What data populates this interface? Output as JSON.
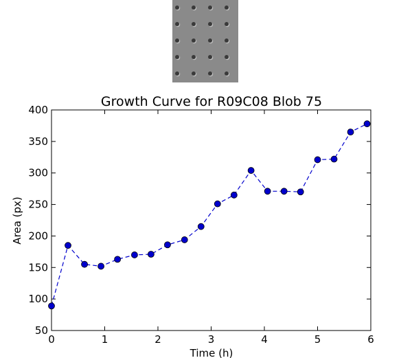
{
  "thumbnail": {
    "name": "blob-microscopy-thumbnail",
    "rows": 5,
    "cols": 4
  },
  "chart_data": {
    "type": "line",
    "title": "Growth Curve for R09C08 Blob 75",
    "xlabel": "Time (h)",
    "ylabel": "Area (px)",
    "xlim": [
      0,
      6
    ],
    "ylim": [
      50,
      400
    ],
    "xticks": [
      0,
      1,
      2,
      3,
      4,
      5,
      6
    ],
    "yticks": [
      50,
      100,
      150,
      200,
      250,
      300,
      350,
      400
    ],
    "grid": false,
    "line_style": "dashed",
    "marker": "circle",
    "color": "#0000cc",
    "series": [
      {
        "x": [
          0,
          0.31,
          0.62,
          0.93,
          1.24,
          1.56,
          1.87,
          2.18,
          2.5,
          2.81,
          3.12,
          3.43,
          3.75,
          4.06,
          4.37,
          4.68,
          5.0,
          5.31,
          5.62,
          5.93
        ],
        "y": [
          89,
          185,
          155,
          152,
          163,
          170,
          171,
          186,
          194,
          215,
          251,
          265,
          304,
          271,
          271,
          270,
          321,
          322,
          365,
          378
        ]
      }
    ]
  }
}
